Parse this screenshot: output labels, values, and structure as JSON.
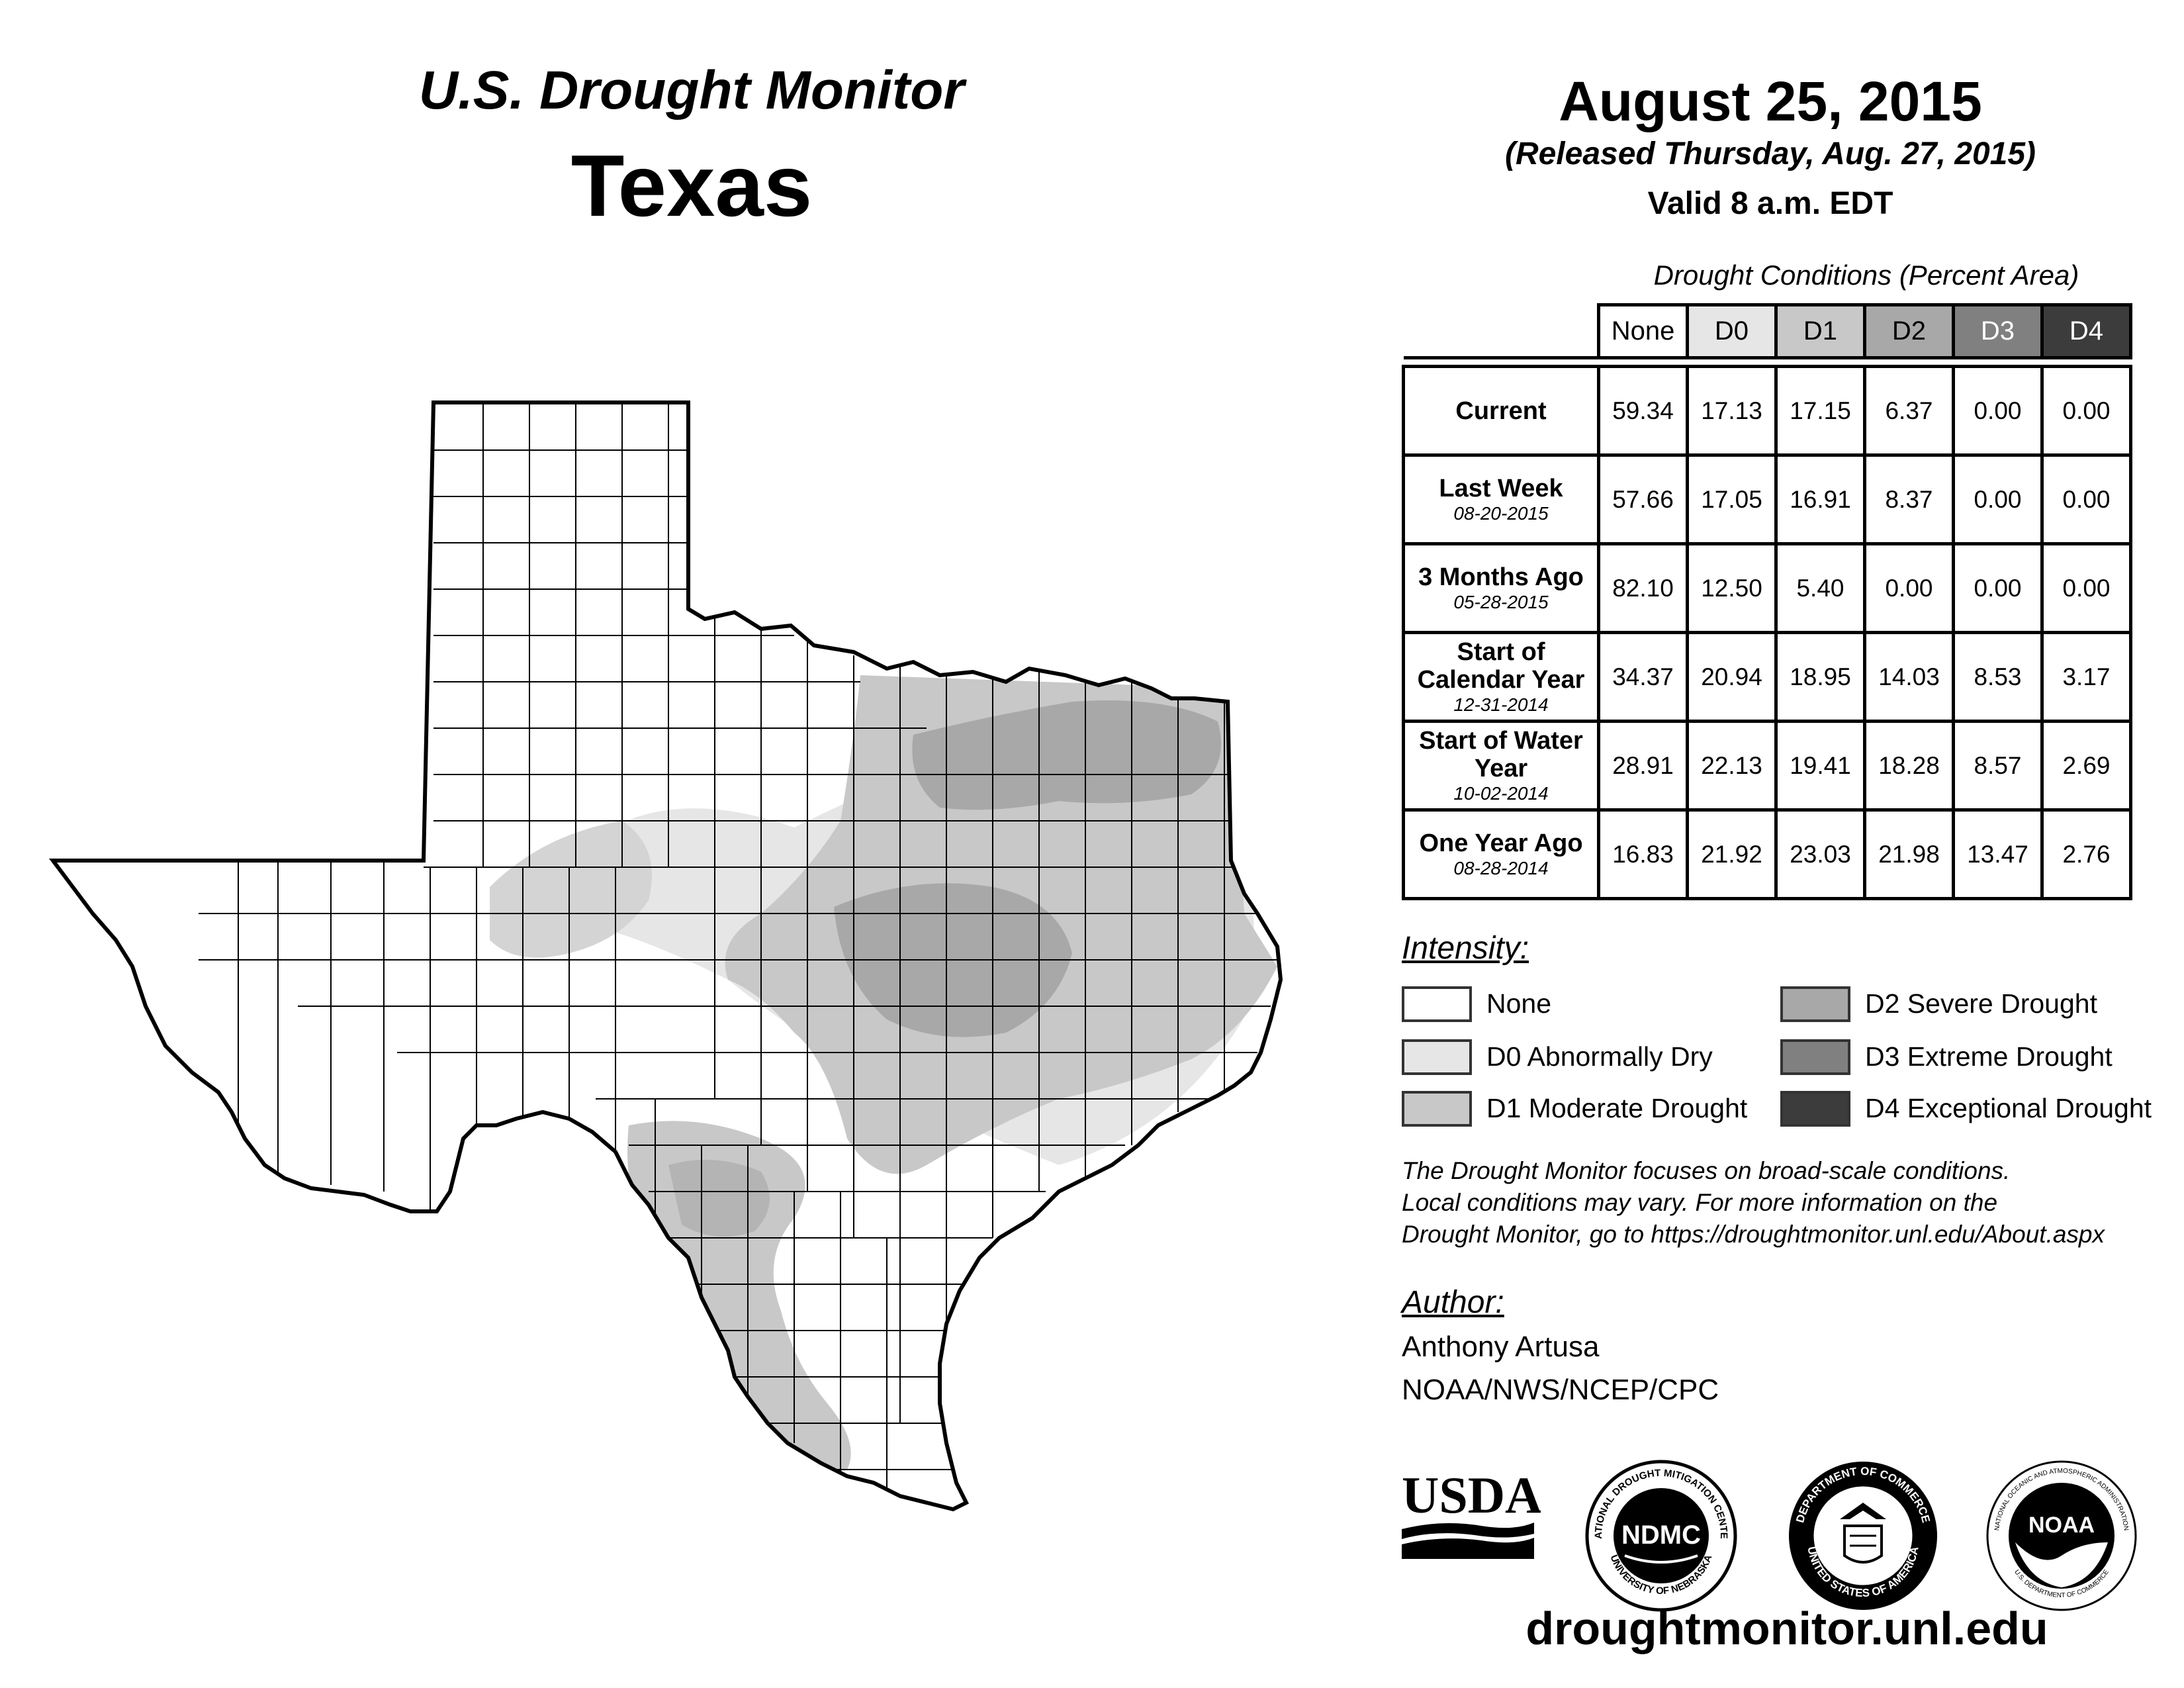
{
  "header": {
    "title": "U.S. Drought Monitor",
    "state": "Texas",
    "date": "August 25, 2015",
    "released": "(Released Thursday, Aug. 27, 2015)",
    "valid": "Valid 8 a.m. EDT"
  },
  "table": {
    "caption": "Drought Conditions (Percent Area)",
    "columns": [
      "None",
      "D0",
      "D1",
      "D2",
      "D3",
      "D4"
    ],
    "column_colors": [
      "#ffffff",
      "#e6e6e6",
      "#c8c8c8",
      "#a8a8a8",
      "#808080",
      "#3c3c3c"
    ],
    "column_text_colors": [
      "#000000",
      "#000000",
      "#000000",
      "#000000",
      "#ffffff",
      "#ffffff"
    ],
    "rows": [
      {
        "label": "Current",
        "date": "",
        "values": [
          "59.34",
          "17.13",
          "17.15",
          "6.37",
          "0.00",
          "0.00"
        ]
      },
      {
        "label": "Last Week",
        "date": "08-20-2015",
        "values": [
          "57.66",
          "17.05",
          "16.91",
          "8.37",
          "0.00",
          "0.00"
        ]
      },
      {
        "label": "3 Months Ago",
        "date": "05-28-2015",
        "values": [
          "82.10",
          "12.50",
          "5.40",
          "0.00",
          "0.00",
          "0.00"
        ]
      },
      {
        "label": "Start of Calendar Year",
        "date": "12-31-2014",
        "values": [
          "34.37",
          "20.94",
          "18.95",
          "14.03",
          "8.53",
          "3.17"
        ]
      },
      {
        "label": "Start of Water Year",
        "date": "10-02-2014",
        "values": [
          "28.91",
          "22.13",
          "19.41",
          "18.28",
          "8.57",
          "2.69"
        ]
      },
      {
        "label": "One Year Ago",
        "date": "08-28-2014",
        "values": [
          "16.83",
          "21.92",
          "23.03",
          "21.98",
          "13.47",
          "2.76"
        ]
      }
    ]
  },
  "legend": {
    "heading": "Intensity:",
    "items": [
      {
        "label": "None",
        "color": "#ffffff"
      },
      {
        "label": "D0 Abnormally Dry",
        "color": "#e6e6e6"
      },
      {
        "label": "D1 Moderate Drought",
        "color": "#c8c8c8"
      },
      {
        "label": "D2 Severe Drought",
        "color": "#a8a8a8"
      },
      {
        "label": "D3 Extreme Drought",
        "color": "#808080"
      },
      {
        "label": "D4 Exceptional Drought",
        "color": "#3c3c3c"
      }
    ]
  },
  "note": {
    "line1": "The Drought Monitor focuses on broad-scale conditions.",
    "line2": "Local conditions may vary. For more information on the",
    "line3": "Drought Monitor, go to https://droughtmonitor.unl.edu/About.aspx"
  },
  "author": {
    "heading": "Author:",
    "name": "Anthony Artusa",
    "org": "NOAA/NWS/NCEP/CPC"
  },
  "logos": {
    "usda": "USDA",
    "ndmc": "NDMC",
    "ndmc_ring_top": "NATIONAL DROUGHT MITIGATION CENTER",
    "ndmc_ring_bottom": "UNIVERSITY OF NEBRASKA",
    "doc_ring_top": "DEPARTMENT OF COMMERCE",
    "doc_ring_bottom": "UNITED STATES OF AMERICA",
    "noaa": "NOAA",
    "noaa_ring": "NATIONAL OCEANIC AND ATMOSPHERIC ADMINISTRATION",
    "noaa_ring_bottom": "U.S. DEPARTMENT OF COMMERCE"
  },
  "footer": {
    "url": "droughtmonitor.unl.edu"
  },
  "map": {
    "region": "Texas",
    "fill_colors": {
      "d0": "#e6e6e6",
      "d1": "#c8c8c8",
      "d2": "#a8a8a8"
    }
  }
}
